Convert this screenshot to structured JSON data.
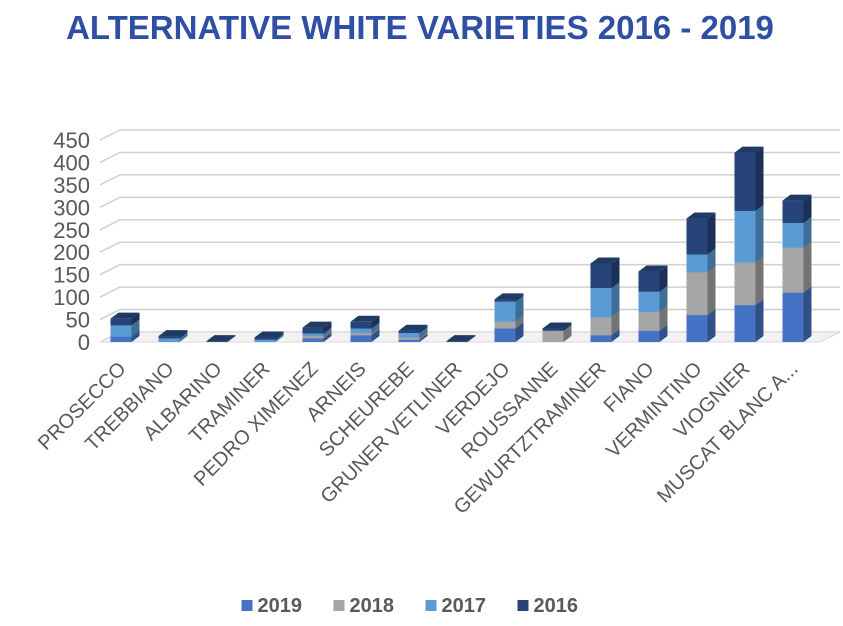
{
  "chart_data": {
    "type": "bar",
    "stacked": true,
    "three_d": true,
    "title": "ALTERNATIVE WHITE VARIETIES 2016 - 2019",
    "categories": [
      "PROSECCO",
      "TREBBIANO",
      "ALBARINO",
      "TRAMINER",
      "PEDRO XIMENEZ",
      "ARNEIS",
      "SCHEUREBE",
      "GRUNER VETLINER",
      "VERDEJO",
      "ROUSSANNE",
      "GEWURTZTRAMINER",
      "FIANO",
      "VERMINTINO",
      "VIOGNIER",
      "MUSCAT BLANC A..."
    ],
    "series": [
      {
        "name": "2019",
        "color": "#4472C4",
        "values": [
          12,
          0,
          0,
          0,
          8,
          15,
          5,
          0,
          30,
          0,
          15,
          25,
          60,
          82,
          110
        ]
      },
      {
        "name": "2018",
        "color": "#A5A5A5",
        "values": [
          0,
          0,
          0,
          0,
          6,
          5,
          5,
          0,
          15,
          25,
          40,
          42,
          95,
          95,
          100
        ]
      },
      {
        "name": "2017",
        "color": "#5B9BD5",
        "values": [
          25,
          8,
          0,
          5,
          5,
          10,
          10,
          0,
          45,
          0,
          65,
          45,
          40,
          115,
          55
        ]
      },
      {
        "name": "2016",
        "color": "#264478",
        "values": [
          15,
          5,
          2,
          5,
          13,
          15,
          5,
          2,
          5,
          5,
          55,
          45,
          80,
          130,
          50
        ]
      }
    ],
    "ylim": [
      0,
      450
    ],
    "yticks": [
      0,
      50,
      100,
      150,
      200,
      250,
      300,
      350,
      400,
      450
    ],
    "ytick_labels": [
      "0",
      "50",
      "100",
      "150",
      "200",
      "250",
      "300",
      "350",
      "400",
      "450"
    ],
    "grid": true,
    "legend_position": "bottom",
    "xlabel": "",
    "ylabel": ""
  }
}
